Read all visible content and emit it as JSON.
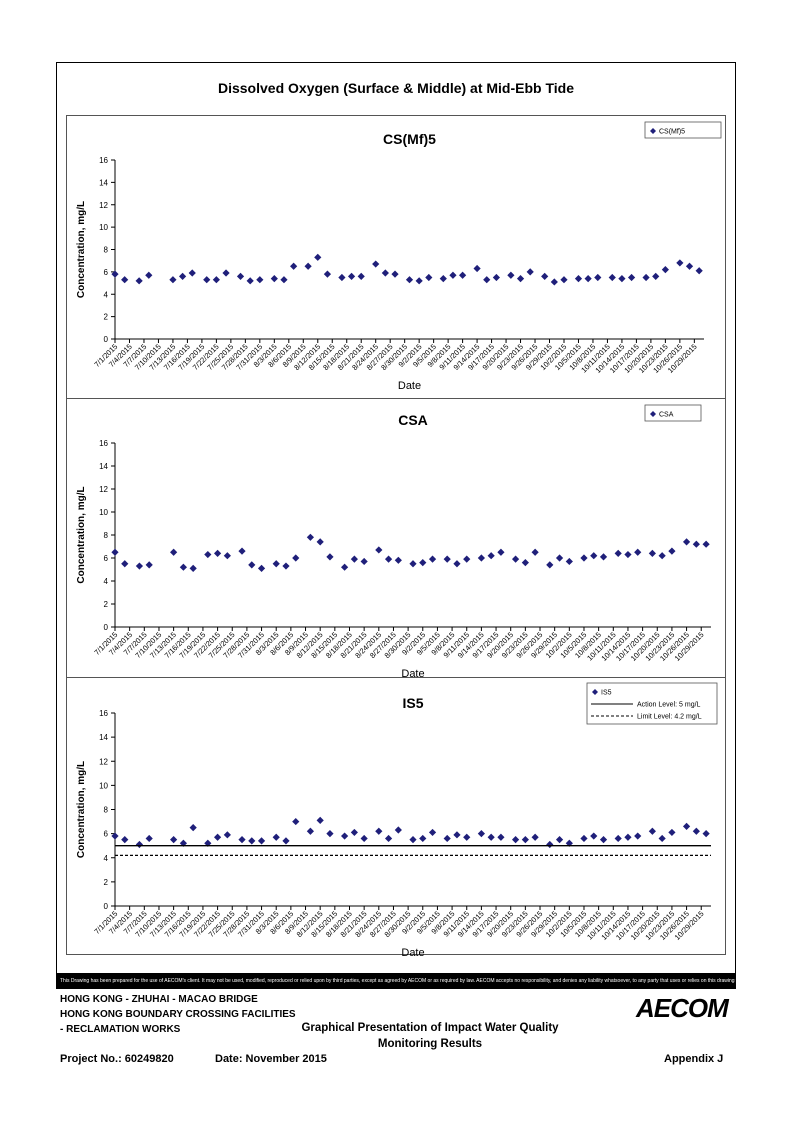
{
  "page": {
    "main_title": "Dissolved Oxygen (Surface & Middle) at Mid-Ebb Tide",
    "disclaimer": "This Drawing has been prepared for the use of AECOM's client. It may not be used, modified, reproduced or relied upon by third parties, except as agreed by AECOM or as required by law. AECOM accepts no responsibility, and denies any liability whatsoever, to any party that uses or relies on this drawing without AECOM's express written consent.",
    "footer": {
      "line1": "HONG KONG - ZHUHAI - MACAO BRIDGE",
      "line2": "HONG KONG BOUNDARY CROSSING FACILITIES",
      "line3": "- RECLAMATION WORKS",
      "report_title_1": "Graphical Presentation of Impact Water Quality",
      "report_title_2": "Monitoring Results",
      "project_no": "Project No.: 60249820",
      "date": "Date: November 2015",
      "appendix": "Appendix J",
      "logo": "AECOM"
    },
    "colors": {
      "marker": "#1f1f7a",
      "line": "#000000"
    }
  },
  "chart_data": [
    {
      "type": "scatter",
      "title": "CS(Mf)5",
      "xlabel": "Date",
      "ylabel": "Concentration, mg/L",
      "ylim": [
        0,
        16
      ],
      "yticks": [
        "0",
        "2",
        "4",
        "6",
        "8",
        "10",
        "12",
        "14",
        "16"
      ],
      "xlim": [
        "7/1/2015",
        "10/31/2015"
      ],
      "xticks": [
        "7/1/2015",
        "7/4/2015",
        "7/7/2015",
        "7/10/2015",
        "7/13/2015",
        "7/16/2015",
        "7/19/2015",
        "7/22/2015",
        "7/25/2015",
        "7/28/2015",
        "7/31/2015",
        "8/3/2015",
        "8/6/2015",
        "8/9/2015",
        "8/12/2015",
        "8/15/2015",
        "8/18/2015",
        "8/21/2015",
        "8/24/2015",
        "8/27/2015",
        "8/30/2015",
        "9/2/2015",
        "9/5/2015",
        "9/8/2015",
        "9/11/2015",
        "9/14/2015",
        "9/17/2015",
        "9/20/2015",
        "9/23/2015",
        "9/26/2015",
        "9/29/2015",
        "10/2/2015",
        "10/5/2015",
        "10/8/2015",
        "10/11/2015",
        "10/14/2015",
        "10/17/2015",
        "10/20/2015",
        "10/23/2015",
        "10/26/2015",
        "10/29/2015"
      ],
      "grid": false,
      "legend": "top-right",
      "series": [
        {
          "name": "CS(Mf)5",
          "marker": "diamond",
          "x": [
            "7/1/2015",
            "7/3/2015",
            "7/6/2015",
            "7/8/2015",
            "7/13/2015",
            "7/15/2015",
            "7/17/2015",
            "7/20/2015",
            "7/22/2015",
            "7/24/2015",
            "7/27/2015",
            "7/29/2015",
            "7/31/2015",
            "8/3/2015",
            "8/5/2015",
            "8/7/2015",
            "8/10/2015",
            "8/12/2015",
            "8/14/2015",
            "8/17/2015",
            "8/19/2015",
            "8/21/2015",
            "8/24/2015",
            "8/26/2015",
            "8/28/2015",
            "8/31/2015",
            "9/2/2015",
            "9/4/2015",
            "9/7/2015",
            "9/9/2015",
            "9/11/2015",
            "9/14/2015",
            "9/16/2015",
            "9/18/2015",
            "9/21/2015",
            "9/23/2015",
            "9/25/2015",
            "9/28/2015",
            "9/30/2015",
            "10/2/2015",
            "10/5/2015",
            "10/7/2015",
            "10/9/2015",
            "10/12/2015",
            "10/14/2015",
            "10/16/2015",
            "10/19/2015",
            "10/21/2015",
            "10/23/2015",
            "10/26/2015",
            "10/28/2015",
            "10/30/2015"
          ],
          "values": [
            5.8,
            5.3,
            5.2,
            5.7,
            5.3,
            5.6,
            5.9,
            5.3,
            5.3,
            5.9,
            5.6,
            5.2,
            5.3,
            5.4,
            5.3,
            6.5,
            6.5,
            7.3,
            5.8,
            5.5,
            5.6,
            5.6,
            6.7,
            5.9,
            5.8,
            5.3,
            5.2,
            5.5,
            5.4,
            5.7,
            5.7,
            6.3,
            5.3,
            5.5,
            5.7,
            5.4,
            6.0,
            5.6,
            5.1,
            5.3,
            5.4,
            5.4,
            5.5,
            5.5,
            5.4,
            5.5,
            5.5,
            5.6,
            6.2,
            6.8,
            6.5,
            6.1
          ]
        }
      ]
    },
    {
      "type": "scatter",
      "title": "CSA",
      "xlabel": "Date",
      "ylabel": "Concentration, mg/L",
      "ylim": [
        0,
        16
      ],
      "yticks": [
        "0",
        "2",
        "4",
        "6",
        "8",
        "10",
        "12",
        "14",
        "16"
      ],
      "xlim": [
        "7/1/2015",
        "10/31/2015"
      ],
      "xticks": [
        "7/1/2015",
        "7/4/2015",
        "7/7/2015",
        "7/10/2015",
        "7/13/2015",
        "7/16/2015",
        "7/19/2015",
        "7/22/2015",
        "7/25/2015",
        "7/28/2015",
        "7/31/2015",
        "8/3/2015",
        "8/6/2015",
        "8/9/2015",
        "8/12/2015",
        "8/15/2015",
        "8/18/2015",
        "8/21/2015",
        "8/24/2015",
        "8/27/2015",
        "8/30/2015",
        "9/2/2015",
        "9/5/2015",
        "9/8/2015",
        "9/11/2015",
        "9/14/2015",
        "9/17/2015",
        "9/20/2015",
        "9/23/2015",
        "9/26/2015",
        "9/29/2015",
        "10/2/2015",
        "10/5/2015",
        "10/8/2015",
        "10/11/2015",
        "10/14/2015",
        "10/17/2015",
        "10/20/2015",
        "10/23/2015",
        "10/26/2015",
        "10/29/2015"
      ],
      "grid": false,
      "legend": "top-right",
      "series": [
        {
          "name": "CSA",
          "marker": "diamond",
          "x": [
            "7/1/2015",
            "7/3/2015",
            "7/6/2015",
            "7/8/2015",
            "7/13/2015",
            "7/15/2015",
            "7/17/2015",
            "7/20/2015",
            "7/22/2015",
            "7/24/2015",
            "7/27/2015",
            "7/29/2015",
            "7/31/2015",
            "8/3/2015",
            "8/5/2015",
            "8/7/2015",
            "8/10/2015",
            "8/12/2015",
            "8/14/2015",
            "8/17/2015",
            "8/19/2015",
            "8/21/2015",
            "8/24/2015",
            "8/26/2015",
            "8/28/2015",
            "8/31/2015",
            "9/2/2015",
            "9/4/2015",
            "9/7/2015",
            "9/9/2015",
            "9/11/2015",
            "9/14/2015",
            "9/16/2015",
            "9/18/2015",
            "9/21/2015",
            "9/23/2015",
            "9/25/2015",
            "9/28/2015",
            "9/30/2015",
            "10/2/2015",
            "10/5/2015",
            "10/7/2015",
            "10/9/2015",
            "10/12/2015",
            "10/14/2015",
            "10/16/2015",
            "10/19/2015",
            "10/21/2015",
            "10/23/2015",
            "10/26/2015",
            "10/28/2015",
            "10/30/2015"
          ],
          "values": [
            6.5,
            5.5,
            5.3,
            5.4,
            6.5,
            5.2,
            5.1,
            6.3,
            6.4,
            6.2,
            6.6,
            5.4,
            5.1,
            5.5,
            5.3,
            6.0,
            7.8,
            7.4,
            6.1,
            5.2,
            5.9,
            5.7,
            6.7,
            5.9,
            5.8,
            5.5,
            5.6,
            5.9,
            5.9,
            5.5,
            5.9,
            6.0,
            6.2,
            6.5,
            5.9,
            5.6,
            6.5,
            5.4,
            6.0,
            5.7,
            6.0,
            6.2,
            6.1,
            6.4,
            6.3,
            6.5,
            6.4,
            6.2,
            6.6,
            7.4,
            7.2,
            7.2
          ]
        }
      ]
    },
    {
      "type": "scatter",
      "title": "IS5",
      "xlabel": "Date",
      "ylabel": "Concentration, mg/L",
      "ylim": [
        0,
        16
      ],
      "yticks": [
        "0",
        "2",
        "4",
        "6",
        "8",
        "10",
        "12",
        "14",
        "16"
      ],
      "xlim": [
        "7/1/2015",
        "10/31/2015"
      ],
      "xticks": [
        "7/1/2015",
        "7/4/2015",
        "7/7/2015",
        "7/10/2015",
        "7/13/2015",
        "7/16/2015",
        "7/19/2015",
        "7/22/2015",
        "7/25/2015",
        "7/28/2015",
        "7/31/2015",
        "8/3/2015",
        "8/6/2015",
        "8/9/2015",
        "8/12/2015",
        "8/15/2015",
        "8/18/2015",
        "8/21/2015",
        "8/24/2015",
        "8/27/2015",
        "8/30/2015",
        "9/2/2015",
        "9/5/2015",
        "9/8/2015",
        "9/11/2015",
        "9/14/2015",
        "9/17/2015",
        "9/20/2015",
        "9/23/2015",
        "9/26/2015",
        "9/29/2015",
        "10/2/2015",
        "10/5/2015",
        "10/8/2015",
        "10/11/2015",
        "10/14/2015",
        "10/17/2015",
        "10/20/2015",
        "10/23/2015",
        "10/26/2015",
        "10/29/2015"
      ],
      "grid": false,
      "legend": "top-right",
      "series": [
        {
          "name": "IS5",
          "marker": "diamond",
          "x": [
            "7/1/2015",
            "7/3/2015",
            "7/6/2015",
            "7/8/2015",
            "7/13/2015",
            "7/15/2015",
            "7/17/2015",
            "7/20/2015",
            "7/22/2015",
            "7/24/2015",
            "7/27/2015",
            "7/29/2015",
            "7/31/2015",
            "8/3/2015",
            "8/5/2015",
            "8/7/2015",
            "8/10/2015",
            "8/12/2015",
            "8/14/2015",
            "8/17/2015",
            "8/19/2015",
            "8/21/2015",
            "8/24/2015",
            "8/26/2015",
            "8/28/2015",
            "8/31/2015",
            "9/2/2015",
            "9/4/2015",
            "9/7/2015",
            "9/9/2015",
            "9/11/2015",
            "9/14/2015",
            "9/16/2015",
            "9/18/2015",
            "9/21/2015",
            "9/23/2015",
            "9/25/2015",
            "9/28/2015",
            "9/30/2015",
            "10/2/2015",
            "10/5/2015",
            "10/7/2015",
            "10/9/2015",
            "10/12/2015",
            "10/14/2015",
            "10/16/2015",
            "10/19/2015",
            "10/21/2015",
            "10/23/2015",
            "10/26/2015",
            "10/28/2015",
            "10/30/2015"
          ],
          "values": [
            5.8,
            5.5,
            5.1,
            5.6,
            5.5,
            5.2,
            6.5,
            5.2,
            5.7,
            5.9,
            5.5,
            5.4,
            5.4,
            5.7,
            5.4,
            7.0,
            6.2,
            7.1,
            6.0,
            5.8,
            6.1,
            5.6,
            6.2,
            5.6,
            6.3,
            5.5,
            5.6,
            6.1,
            5.6,
            5.9,
            5.7,
            6.0,
            5.7,
            5.7,
            5.5,
            5.5,
            5.7,
            5.1,
            5.5,
            5.2,
            5.6,
            5.8,
            5.5,
            5.6,
            5.7,
            5.8,
            6.2,
            5.6,
            6.1,
            6.6,
            6.2,
            6.0
          ]
        },
        {
          "name": "Action Level: 5 mg/L",
          "style": "solid",
          "value": 5
        },
        {
          "name": "Limit Level: 4.2 mg/L",
          "style": "dashed",
          "value": 4.2
        }
      ]
    }
  ]
}
